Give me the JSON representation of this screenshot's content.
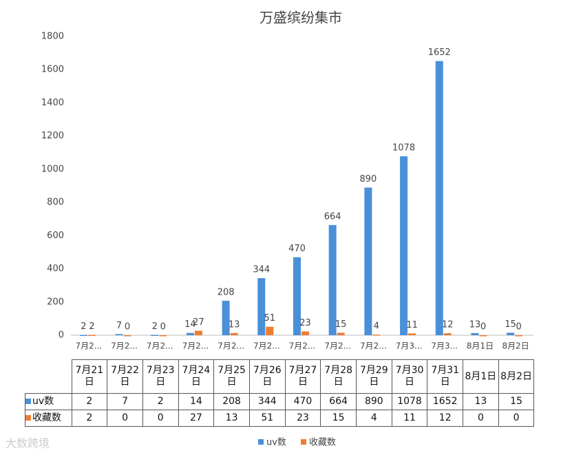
{
  "chart_data": {
    "type": "bar",
    "title": "万盛缤纷集市",
    "categories": [
      "7月21日",
      "7月22日",
      "7月23日",
      "7月24日",
      "7月25日",
      "7月26日",
      "7月27日",
      "7月28日",
      "7月29日",
      "7月30日",
      "7月31日",
      "8月1日",
      "8月2日"
    ],
    "x_labels": [
      "7月2...",
      "7月2...",
      "7月2...",
      "7月2...",
      "7月2...",
      "7月2...",
      "7月2...",
      "7月2...",
      "7月2...",
      "7月3...",
      "7月3...",
      "8月1日",
      "8月2日"
    ],
    "series": [
      {
        "name": "uv数",
        "color": "#4a90d9",
        "values": [
          2,
          7,
          2,
          14,
          208,
          344,
          470,
          664,
          890,
          1078,
          1652,
          13,
          15
        ]
      },
      {
        "name": "收藏数",
        "color": "#ed7d31",
        "values": [
          2,
          0,
          0,
          27,
          13,
          51,
          23,
          15,
          4,
          11,
          12,
          0,
          0
        ]
      }
    ],
    "ylim": [
      0,
      1800
    ],
    "yticks": [
      0,
      200,
      400,
      600,
      800,
      1000,
      1200,
      1400,
      1600,
      1800
    ],
    "grid": false,
    "legend": "bottom",
    "watermark": "大数跨境"
  }
}
